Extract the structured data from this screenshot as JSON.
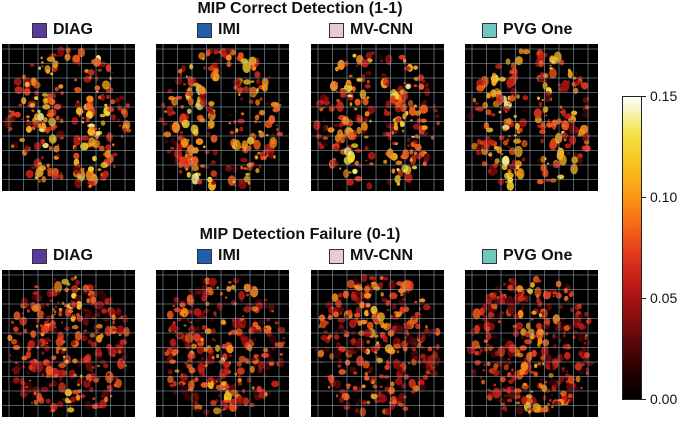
{
  "rows": [
    {
      "title": "MIP Correct Detection (1-1)",
      "panels": [
        {
          "label": "DIAG",
          "swatch": "#5b3a9d"
        },
        {
          "label": "IMI",
          "swatch": "#1f5fad"
        },
        {
          "label": "MV-CNN",
          "swatch": "#e8c9d8"
        },
        {
          "label": "PVG One",
          "swatch": "#6fc7c0"
        }
      ]
    },
    {
      "title": "MIP Detection Failure (0-1)",
      "panels": [
        {
          "label": "DIAG",
          "swatch": "#5b3a9d"
        },
        {
          "label": "IMI",
          "swatch": "#1f5fad"
        },
        {
          "label": "MV-CNN",
          "swatch": "#e8c9d8"
        },
        {
          "label": "PVG One",
          "swatch": "#6fc7c0"
        }
      ]
    }
  ],
  "colorbar": {
    "ticks": [
      "0.15",
      "0.10",
      "0.05",
      "0.00"
    ],
    "min": 0.0,
    "max": 0.15,
    "colors": {
      "grid": "#8fa3ad",
      "low": "#000000",
      "mid": "#e2381d",
      "high": "#f4e34a",
      "top": "#ffffff"
    }
  }
}
